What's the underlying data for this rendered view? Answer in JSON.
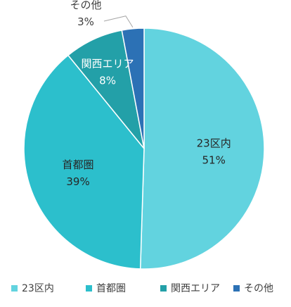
{
  "chart_data": {
    "type": "pie",
    "categories": [
      "23区内",
      "首都圏",
      "関西エリア",
      "その他"
    ],
    "values": [
      51,
      39,
      8,
      3
    ],
    "value_labels": [
      "51%",
      "39%",
      "8%",
      "3%"
    ],
    "colors": [
      "#62d3df",
      "#2cbfcc",
      "#23a0a8",
      "#2c71b5"
    ],
    "start_angle_deg": 0,
    "direction": "clockwise",
    "legend_position": "bottom",
    "title": ""
  }
}
